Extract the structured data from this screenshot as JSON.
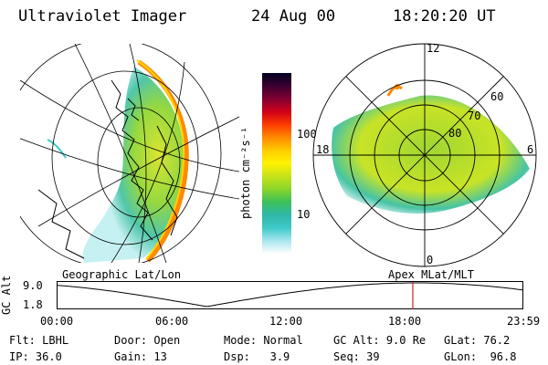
{
  "header": {
    "instrument": "Ultraviolet Imager",
    "date": "24 Aug 00",
    "time": "18:20:20 UT"
  },
  "colorbar": {
    "unit_label": "photon cm⁻²s⁻¹",
    "ticks": [
      "100",
      "10"
    ],
    "gradient": [
      "#ffffff",
      "#a8e6ee",
      "#3ec9c9",
      "#2fb8a8",
      "#3cc05a",
      "#8ad42a",
      "#c6e21a",
      "#fff200",
      "#ffcc00",
      "#ff8a00",
      "#ff3c00",
      "#d0001a",
      "#800030",
      "#3a0030",
      "#000020"
    ]
  },
  "geo_panel": {
    "caption": "Geographic Lat/Lon"
  },
  "polar_panel": {
    "caption": "Apex MLat/MLT",
    "mlt_labels": {
      "top": "12",
      "left": "18",
      "right": "6",
      "bottom": "0"
    },
    "lat_labels": [
      "60",
      "70",
      "80"
    ]
  },
  "timeline": {
    "y_axis_label": "GC Alt",
    "y_ticks": [
      "9.0",
      "1.8"
    ],
    "x_ticks": [
      "00:00",
      "06:00",
      "12:00",
      "18:00",
      "23:59"
    ],
    "marker_time_hours": 18.34,
    "marker_color": "#cc2222"
  },
  "info": {
    "row1": [
      {
        "label": "Flt:",
        "value": "LBHL"
      },
      {
        "label": "Door:",
        "value": "Open"
      },
      {
        "label": "Mode:",
        "value": "Normal"
      },
      {
        "label": "GC Alt:",
        "value": "9.0 Re"
      },
      {
        "label": "GLat:",
        "value": "76.2"
      }
    ],
    "row2": [
      {
        "label": "IP:",
        "value": "36.0"
      },
      {
        "label": "Gain:",
        "value": "13"
      },
      {
        "label": "Dsp:",
        "value": "3.9"
      },
      {
        "label": "Seq:",
        "value": "39"
      },
      {
        "label": "GLon:",
        "value": "96.8"
      }
    ]
  }
}
